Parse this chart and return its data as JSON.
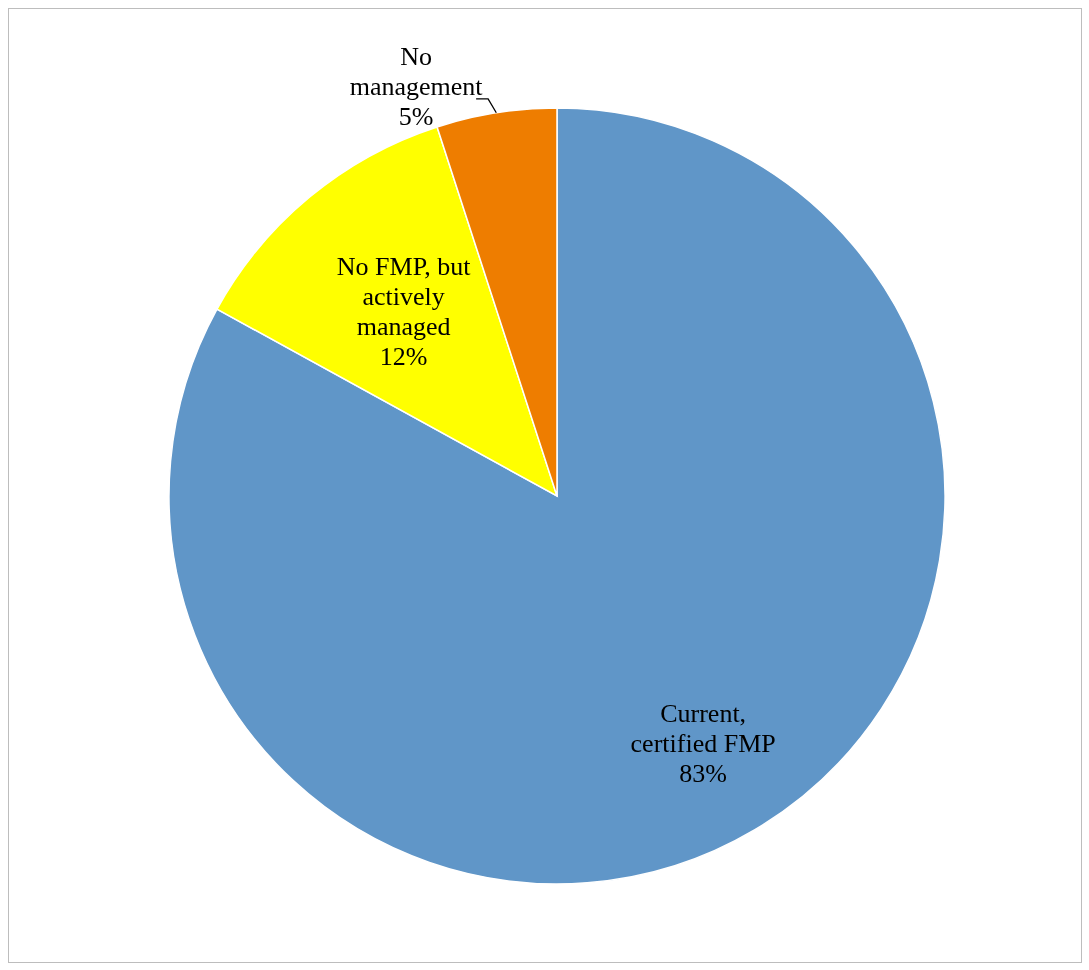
{
  "chart_data": {
    "type": "pie",
    "categories": [
      "Current, certified FMP",
      "No FMP, but actively managed",
      "No management"
    ],
    "values": [
      83,
      12,
      5
    ],
    "colors": [
      "#6096c8",
      "#ffff00",
      "#ee7d00"
    ],
    "value_labels": [
      "83%",
      "12%",
      "5%"
    ]
  }
}
